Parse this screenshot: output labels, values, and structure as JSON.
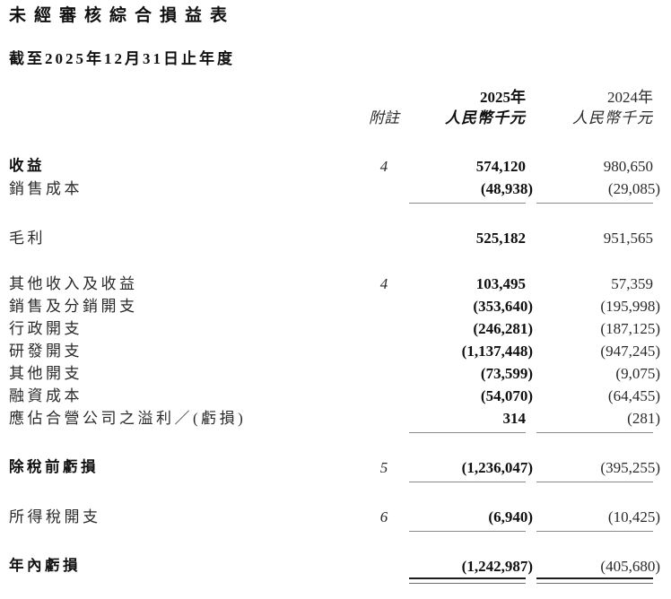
{
  "page": {
    "title": "未經審核綜合損益表",
    "subtitle": "截至2025年12月31日止年度"
  },
  "table": {
    "note_header": "附註",
    "col_2025": {
      "year": "2025年",
      "unit": "人民幣千元"
    },
    "col_2024": {
      "year": "2024年",
      "unit": "人民幣千元"
    },
    "rows": [
      {
        "label": "收益",
        "note": "4",
        "v2025": "574,120",
        "v2024": "980,650",
        "bold": true
      },
      {
        "label": "銷售成本",
        "v2025": "(48,938)",
        "v2024": "(29,085)",
        "rule": "single"
      },
      {
        "type": "spacer"
      },
      {
        "label": "毛利",
        "v2025": "525,182",
        "v2024": "951,565"
      },
      {
        "type": "spacer"
      },
      {
        "label": "其他收入及收益",
        "note": "4",
        "v2025": "103,495",
        "v2024": "57,359"
      },
      {
        "label": "銷售及分銷開支",
        "v2025": "(353,640)",
        "v2024": "(195,998)"
      },
      {
        "label": "行政開支",
        "v2025": "(246,281)",
        "v2024": "(187,125)"
      },
      {
        "label": "研發開支",
        "v2025": "(1,137,448)",
        "v2024": "(947,245)"
      },
      {
        "label": "其他開支",
        "v2025": "(73,599)",
        "v2024": "(9,075)"
      },
      {
        "label": "融資成本",
        "v2025": "(54,070)",
        "v2024": "(64,455)"
      },
      {
        "label": "應佔合營公司之溢利／(虧損)",
        "v2025": "314",
        "v2024": "(281)",
        "rule": "single"
      },
      {
        "type": "spacer"
      },
      {
        "label": "除稅前虧損",
        "note": "5",
        "v2025": "(1,236,047)",
        "v2024": "(395,255)",
        "bold": true,
        "rule": "single"
      },
      {
        "type": "spacer"
      },
      {
        "label": "所得稅開支",
        "note": "6",
        "v2025": "(6,940)",
        "v2024": "(10,425)",
        "rule": "single"
      },
      {
        "type": "spacer"
      },
      {
        "label": "年內虧損",
        "v2025": "(1,242,987)",
        "v2024": "(405,680)",
        "bold": true,
        "rule": "double"
      }
    ]
  },
  "colors": {
    "text": "#2a2a2a",
    "bold_text": "#101010",
    "rule": "#8a8a8a",
    "double_rule_top": "#1b1b1b"
  }
}
